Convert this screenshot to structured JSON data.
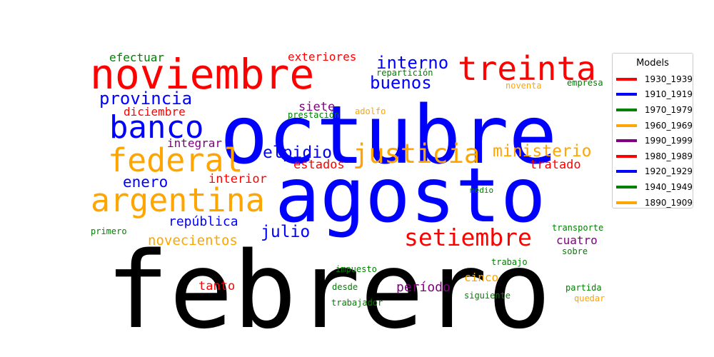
{
  "chart_data": {
    "type": "wordcloud",
    "legend": {
      "title": "Models",
      "placement": "right",
      "entries": [
        {
          "label": "1930_1939",
          "color": "#ff0000"
        },
        {
          "label": "1910_1919",
          "color": "#0000ff"
        },
        {
          "label": "1970_1979",
          "color": "#008000"
        },
        {
          "label": "1960_1969",
          "color": "#ffa500"
        },
        {
          "label": "1990_1999",
          "color": "#800080"
        },
        {
          "label": "1980_1989",
          "color": "#ff0000"
        },
        {
          "label": "1920_1929",
          "color": "#0000ff"
        },
        {
          "label": "1940_1949",
          "color": "#008000"
        },
        {
          "label": "1890_1909",
          "color": "#ffa500"
        }
      ]
    },
    "words": [
      {
        "text": "febrero",
        "color": "#000000"
      },
      {
        "text": "octubre",
        "color": "#0000ff"
      },
      {
        "text": "agosto",
        "color": "#0000ff"
      },
      {
        "text": "noviembre",
        "color": "#ff0000"
      },
      {
        "text": "treinta",
        "color": "#ff0000"
      },
      {
        "text": "banco",
        "color": "#0000ff"
      },
      {
        "text": "federal",
        "color": "#ffa500"
      },
      {
        "text": "argentina",
        "color": "#ffa500"
      },
      {
        "text": "justicia",
        "color": "#ffa500"
      },
      {
        "text": "setiembre",
        "color": "#ff0000"
      },
      {
        "text": "provincia",
        "color": "#0000ff"
      },
      {
        "text": "interno",
        "color": "#0000ff"
      },
      {
        "text": "buenos",
        "color": "#0000ff"
      },
      {
        "text": "ministerio",
        "color": "#ffa500"
      },
      {
        "text": "elpidio",
        "color": "#0000ff"
      },
      {
        "text": "julio",
        "color": "#0000ff"
      },
      {
        "text": "enero",
        "color": "#0000ff"
      },
      {
        "text": "novecientos",
        "color": "#ffa500"
      },
      {
        "text": "diciembre",
        "color": "#ff0000"
      },
      {
        "text": "república",
        "color": "#0000ff"
      },
      {
        "text": "tratado",
        "color": "#ff0000"
      },
      {
        "text": "estados",
        "color": "#ff0000"
      },
      {
        "text": "interior",
        "color": "#ff0000"
      },
      {
        "text": "siete",
        "color": "#800080"
      },
      {
        "text": "integrar",
        "color": "#800080"
      },
      {
        "text": "exteriores",
        "color": "#ff0000"
      },
      {
        "text": "efectuar",
        "color": "#008000"
      },
      {
        "text": "cuatro",
        "color": "#800080"
      },
      {
        "text": "período",
        "color": "#800080"
      },
      {
        "text": "tanto",
        "color": "#ff0000"
      },
      {
        "text": "cinco",
        "color": "#ffa500"
      },
      {
        "text": "repartición",
        "color": "#008000"
      },
      {
        "text": "prestación",
        "color": "#008000"
      },
      {
        "text": "adolfo",
        "color": "#ffa500"
      },
      {
        "text": "noventa",
        "color": "#ffa500"
      },
      {
        "text": "empresa",
        "color": "#008000"
      },
      {
        "text": "medio",
        "color": "#008000"
      },
      {
        "text": "primero",
        "color": "#008000"
      },
      {
        "text": "transporte",
        "color": "#008000"
      },
      {
        "text": "sobre",
        "color": "#008000"
      },
      {
        "text": "trabajo",
        "color": "#008000"
      },
      {
        "text": "impuesto",
        "color": "#008000"
      },
      {
        "text": "desde",
        "color": "#008000"
      },
      {
        "text": "trabajador",
        "color": "#008000"
      },
      {
        "text": "siguiente",
        "color": "#008000"
      },
      {
        "text": "partida",
        "color": "#008000"
      },
      {
        "text": "quedar",
        "color": "#ffa500"
      }
    ]
  }
}
